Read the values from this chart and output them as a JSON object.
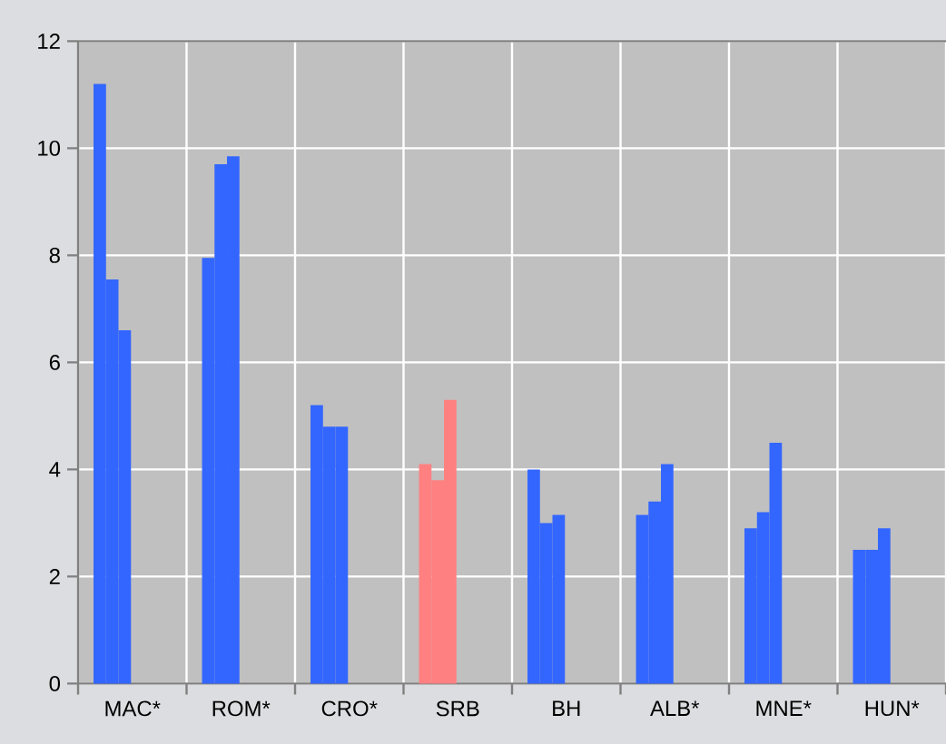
{
  "chart_data": {
    "type": "bar",
    "categories": [
      "MAC*",
      "ROM*",
      "CRO*",
      "SRB",
      "BH",
      "ALB*",
      "MNE*",
      "HUN*"
    ],
    "series": [
      {
        "colors": [
          "#3366ff",
          "#3366ff",
          "#3366ff",
          "#ff8080",
          "#3366ff",
          "#3366ff",
          "#3366ff",
          "#3366ff"
        ],
        "values": [
          11.2,
          7.95,
          5.2,
          4.1,
          4.0,
          3.15,
          2.9,
          2.5
        ]
      },
      {
        "colors": [
          "#3366ff",
          "#3366ff",
          "#3366ff",
          "#ff8080",
          "#3366ff",
          "#3366ff",
          "#3366ff",
          "#3366ff"
        ],
        "values": [
          7.55,
          9.7,
          4.8,
          3.8,
          3.0,
          3.4,
          3.2,
          2.5
        ]
      },
      {
        "colors": [
          "#3366ff",
          "#3366ff",
          "#3366ff",
          "#ff8080",
          "#3366ff",
          "#3366ff",
          "#3366ff",
          "#3366ff"
        ],
        "values": [
          6.6,
          9.85,
          4.8,
          5.3,
          3.15,
          4.1,
          4.5,
          2.9
        ]
      }
    ],
    "ylim": [
      0,
      12
    ],
    "yticks": [
      0,
      2,
      4,
      6,
      8,
      10,
      12
    ],
    "grid": true
  }
}
